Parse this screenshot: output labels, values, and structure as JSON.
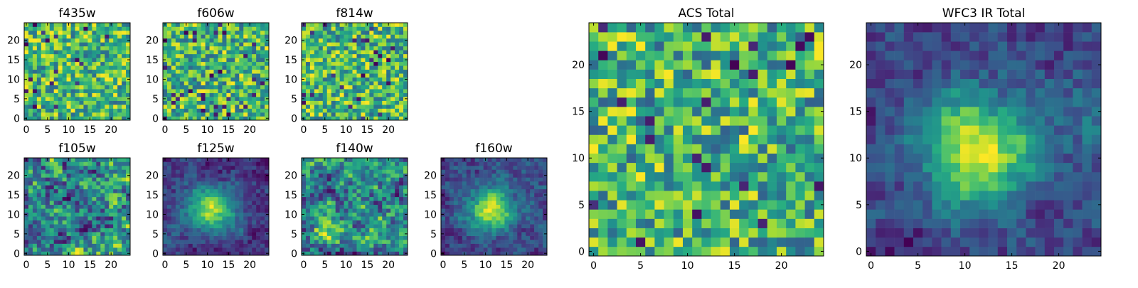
{
  "chart_data": [
    {
      "type": "heatmap",
      "title": "f435w",
      "grid_size": 25,
      "xlim": [
        -0.5,
        24.5
      ],
      "ylim": [
        -0.5,
        24.5
      ],
      "xticks": [
        0,
        5,
        10,
        15,
        20
      ],
      "yticks": [
        0,
        5,
        10,
        15,
        20
      ],
      "colormap": "viridis",
      "structure": "noise",
      "seed": 11
    },
    {
      "type": "heatmap",
      "title": "f606w",
      "grid_size": 25,
      "xlim": [
        -0.5,
        24.5
      ],
      "ylim": [
        -0.5,
        24.5
      ],
      "xticks": [
        0,
        5,
        10,
        15,
        20
      ],
      "yticks": [
        0,
        5,
        10,
        15,
        20
      ],
      "colormap": "viridis",
      "structure": "noise",
      "seed": 23
    },
    {
      "type": "heatmap",
      "title": "f814w",
      "grid_size": 25,
      "xlim": [
        -0.5,
        24.5
      ],
      "ylim": [
        -0.5,
        24.5
      ],
      "xticks": [
        0,
        5,
        10,
        15,
        20
      ],
      "yticks": [
        0,
        5,
        10,
        15,
        20
      ],
      "colormap": "viridis",
      "structure": "noise",
      "seed": 37
    },
    {
      "type": "heatmap",
      "title": "f105w",
      "grid_size": 25,
      "xlim": [
        -0.5,
        24.5
      ],
      "ylim": [
        -0.5,
        24.5
      ],
      "xticks": [
        0,
        5,
        10,
        15,
        20
      ],
      "yticks": [
        0,
        5,
        10,
        15,
        20
      ],
      "colormap": "viridis",
      "structure": "smooth",
      "seed": 41
    },
    {
      "type": "heatmap",
      "title": "f125w",
      "grid_size": 25,
      "xlim": [
        -0.5,
        24.5
      ],
      "ylim": [
        -0.5,
        24.5
      ],
      "xticks": [
        0,
        5,
        10,
        15,
        20
      ],
      "yticks": [
        0,
        5,
        10,
        15,
        20
      ],
      "colormap": "viridis",
      "structure": "source",
      "seed": 53
    },
    {
      "type": "heatmap",
      "title": "f140w",
      "grid_size": 25,
      "xlim": [
        -0.5,
        24.5
      ],
      "ylim": [
        -0.5,
        24.5
      ],
      "xticks": [
        0,
        5,
        10,
        15,
        20
      ],
      "yticks": [
        0,
        5,
        10,
        15,
        20
      ],
      "colormap": "viridis",
      "structure": "smooth",
      "seed": 67
    },
    {
      "type": "heatmap",
      "title": "f160w",
      "grid_size": 25,
      "xlim": [
        -0.5,
        24.5
      ],
      "ylim": [
        -0.5,
        24.5
      ],
      "xticks": [
        0,
        5,
        10,
        15,
        20
      ],
      "yticks": [
        0,
        5,
        10,
        15,
        20
      ],
      "colormap": "viridis",
      "structure": "source",
      "seed": 79
    },
    {
      "type": "heatmap",
      "title": "ACS Total",
      "grid_size": 25,
      "xlim": [
        -0.5,
        24.5
      ],
      "ylim": [
        -0.5,
        24.5
      ],
      "xticks": [
        0,
        5,
        10,
        15,
        20
      ],
      "yticks": [
        0,
        5,
        10,
        15,
        20
      ],
      "colormap": "viridis",
      "structure": "noise",
      "seed": 83
    },
    {
      "type": "heatmap",
      "title": "WFC3 IR Total",
      "grid_size": 25,
      "xlim": [
        -0.5,
        24.5
      ],
      "ylim": [
        -0.5,
        24.5
      ],
      "xticks": [
        0,
        5,
        10,
        15,
        20
      ],
      "yticks": [
        0,
        5,
        10,
        15,
        20
      ],
      "colormap": "viridis",
      "structure": "source",
      "seed": 97
    }
  ]
}
